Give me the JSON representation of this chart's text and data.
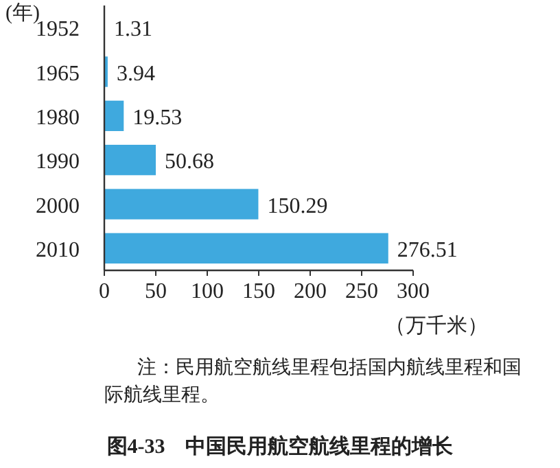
{
  "chart_data": {
    "type": "bar",
    "orientation": "horizontal",
    "title": "图4-33　中国民用航空航线里程的增长",
    "ylabel": "(年)",
    "xlabel": "（万千米）",
    "annotations": [
      "注：民用航空航线里程包括国内航线里程和国际航线里程。"
    ],
    "categories": [
      "1952",
      "1965",
      "1980",
      "1990",
      "2000",
      "2010"
    ],
    "values": [
      1.31,
      3.94,
      19.53,
      50.68,
      150.29,
      276.51
    ],
    "color": "#3fa9de",
    "data_labels": true,
    "xlim": [
      0,
      300
    ],
    "xticks": [
      0,
      50,
      100,
      150,
      200,
      250,
      300
    ],
    "grid": false
  }
}
